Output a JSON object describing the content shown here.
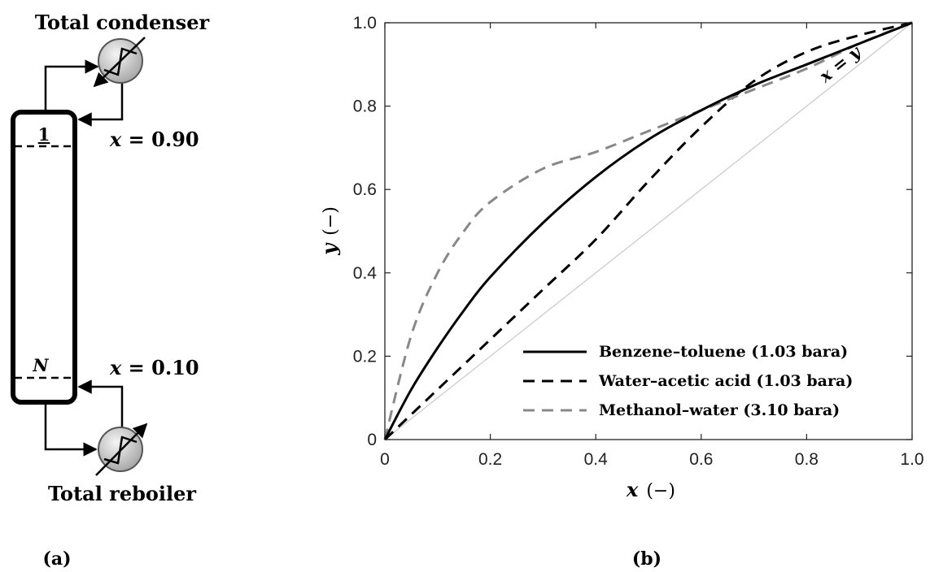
{
  "panel_a": {
    "condenser_label": "Total condenser",
    "reboiler_label": "Total reboiler",
    "top_stage_label": "1",
    "bottom_stage_label": "N",
    "top_comp_label": "x = 0.90",
    "bottom_comp_label": "x = 0.10",
    "caption": "(a)"
  },
  "panel_b": {
    "caption": "(b)",
    "diagonal_label": "x = y"
  },
  "chart_data": {
    "type": "line",
    "xlabel_var": "x",
    "xlabel_unit": "(−)",
    "ylabel_var": "y",
    "ylabel_unit": "(−)",
    "xlim": [
      0,
      1
    ],
    "ylim": [
      0,
      1
    ],
    "x_ticks": [
      0,
      0.2,
      0.4,
      0.6,
      0.8,
      1.0
    ],
    "x_tick_labels": [
      "0",
      "0.2",
      "0.4",
      "0.6",
      "0.8",
      "1.0"
    ],
    "y_ticks": [
      0,
      0.2,
      0.4,
      0.6,
      0.8,
      1.0
    ],
    "y_tick_labels": [
      "0",
      "0.2",
      "0.4",
      "0.6",
      "0.8",
      "1.0"
    ],
    "grid": false,
    "legend_position": "bottom-right",
    "x": [
      0,
      0.05,
      0.1,
      0.15,
      0.2,
      0.3,
      0.4,
      0.5,
      0.6,
      0.7,
      0.8,
      0.9,
      1.0
    ],
    "series": [
      {
        "name": "Benzene–toluene (1.03 bara)",
        "style": "solid",
        "color": "#000000",
        "values": [
          0,
          0.12,
          0.22,
          0.31,
          0.39,
          0.52,
          0.63,
          0.72,
          0.79,
          0.85,
          0.9,
          0.95,
          1.0
        ]
      },
      {
        "name": "Water–acetic acid (1.03 bara)",
        "style": "dashed",
        "color": "#000000",
        "values": [
          0,
          0.06,
          0.12,
          0.18,
          0.24,
          0.36,
          0.48,
          0.62,
          0.75,
          0.86,
          0.93,
          0.97,
          1.0
        ]
      },
      {
        "name": "Methanol–water (3.10 bara)",
        "style": "dashed",
        "color": "#888888",
        "values": [
          0,
          0.25,
          0.4,
          0.5,
          0.57,
          0.65,
          0.69,
          0.74,
          0.79,
          0.84,
          0.89,
          0.95,
          1.0
        ]
      }
    ],
    "diagonal": {
      "x": [
        0,
        1
      ],
      "y": [
        0,
        1
      ]
    }
  }
}
